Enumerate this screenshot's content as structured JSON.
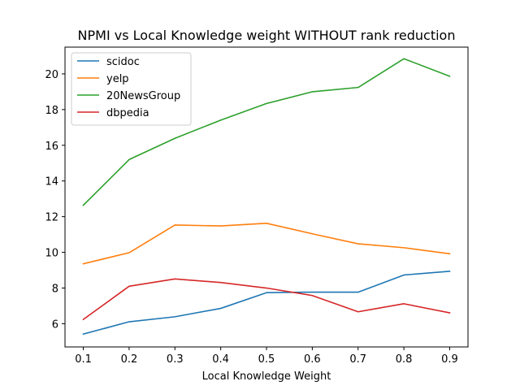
{
  "chart_data": {
    "type": "line",
    "title": "NPMI vs Local Knowledge weight WITHOUT rank reduction",
    "xlabel": "Local Knowledge Weight",
    "ylabel": "",
    "x": [
      0.1,
      0.2,
      0.3,
      0.4,
      0.5,
      0.6,
      0.7,
      0.8,
      0.9
    ],
    "x_ticks": [
      "0.1",
      "0.2",
      "0.3",
      "0.4",
      "0.5",
      "0.6",
      "0.7",
      "0.8",
      "0.9"
    ],
    "y_ticks": [
      "6",
      "8",
      "10",
      "12",
      "14",
      "16",
      "18",
      "20"
    ],
    "xlim": [
      0.06,
      0.94
    ],
    "ylim": [
      4.7,
      21.5
    ],
    "grid": false,
    "legend_position": "upper-left",
    "series": [
      {
        "name": "scidoc",
        "color": "#1f77b4",
        "values": [
          5.42,
          6.11,
          6.39,
          6.86,
          7.74,
          7.77,
          7.77,
          8.73,
          8.94
        ]
      },
      {
        "name": "yelp",
        "color": "#ff7f0e",
        "values": [
          9.36,
          9.98,
          11.53,
          11.48,
          11.63,
          11.04,
          10.48,
          10.26,
          9.92
        ]
      },
      {
        "name": "20NewsGroup",
        "color": "#2ca02c",
        "values": [
          12.64,
          15.2,
          16.39,
          17.41,
          18.34,
          19.0,
          19.24,
          20.85,
          19.87
        ]
      },
      {
        "name": "dbpedia",
        "color": "#d62728",
        "values": [
          6.24,
          8.1,
          8.51,
          8.31,
          8.0,
          7.58,
          6.67,
          7.12,
          6.61
        ]
      }
    ]
  }
}
